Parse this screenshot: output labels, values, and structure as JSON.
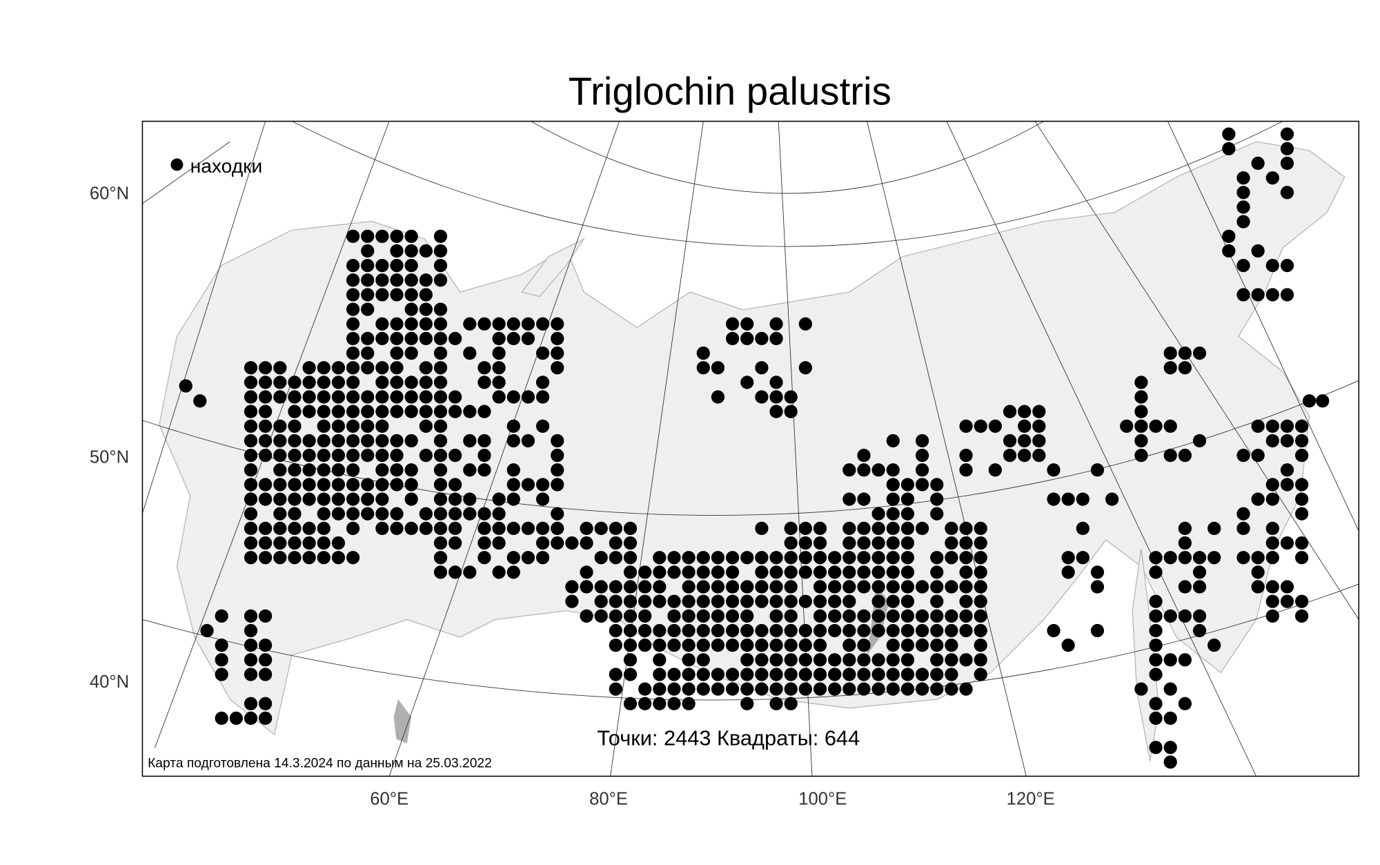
{
  "title": "Triglochin palustris",
  "legend": {
    "label": "находки",
    "marker_color": "#000000"
  },
  "stats_text": "Точки: 2443 Квадраты: 644",
  "footer_note": "Карта подготовлена 14.3.2024 по данным на 25.03.2022",
  "lat_labels": [
    "60°N",
    "50°N",
    "40°N"
  ],
  "lon_labels": [
    "60°E",
    "80°E",
    "100°E",
    "120°E"
  ],
  "colors": {
    "land": "#efefef",
    "coast": "#b5b5b5",
    "lakes": "#b0b0b0",
    "graticule": "#333333",
    "dots": "#000000"
  }
}
